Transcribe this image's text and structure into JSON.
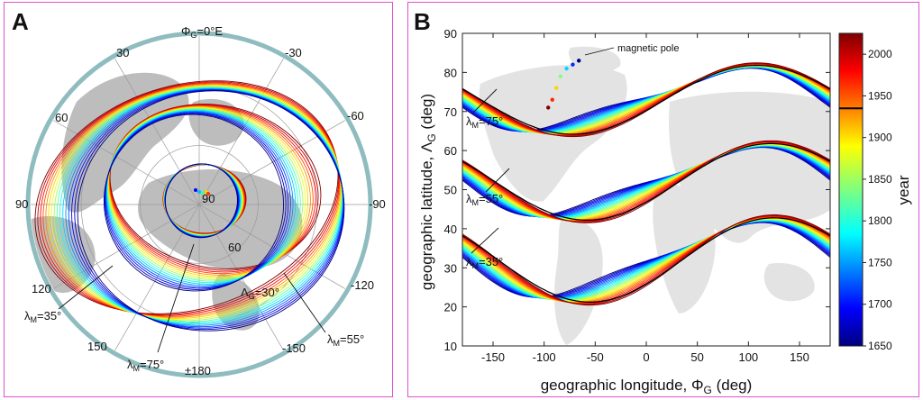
{
  "panels": {
    "a": {
      "letter": "A",
      "top_label": "Φ",
      "top_label_sub": "G",
      "top_label_value": "=0°E",
      "longitude_labels": [
        "30",
        "-30",
        "60",
        "-60",
        "90",
        "-90",
        "120",
        "-120",
        "150",
        "-150",
        "±180"
      ],
      "latitude_labels": [
        "90",
        "60"
      ],
      "lambda_g_label": "Λ",
      "lambda_g_sub": "G",
      "lambda_g_value": "=30°",
      "lambda_m_symbol": "λ",
      "lambda_m_sub": "M",
      "lambda_m_labels": [
        "=35°",
        "=75°",
        "=55°"
      ]
    },
    "b": {
      "letter": "B",
      "annotation": "magnetic pole",
      "curve_label_symbol": "λ",
      "curve_label_sub": "M",
      "curve_labels": [
        "=75°",
        "=55°",
        "=35°"
      ]
    }
  },
  "chart_data": [
    {
      "type": "line",
      "panel": "A",
      "projection": "polar",
      "colors_encode": "year",
      "rings_latitude": [
        90,
        60,
        30
      ],
      "series": [
        {
          "name": "λM=35°"
        },
        {
          "name": "λM=55°"
        },
        {
          "name": "λM=75°"
        }
      ]
    },
    {
      "type": "line",
      "panel": "B",
      "xlabel": "geographic longitude, ΦG (deg)",
      "xlabel_parts": [
        "geographic longitude, Φ",
        "G",
        " (deg)"
      ],
      "ylabel": "geographic latitude, ΛG (deg)",
      "ylabel_parts": [
        "geographic latitude, Λ",
        "G",
        " (deg)"
      ],
      "xlim": [
        -180,
        180
      ],
      "ylim": [
        10,
        90
      ],
      "x_ticks": [
        -150,
        -100,
        -50,
        0,
        50,
        100,
        150
      ],
      "y_ticks": [
        10,
        20,
        30,
        40,
        50,
        60,
        70,
        80,
        90
      ],
      "colorbar": {
        "label": "year",
        "min": 1650,
        "max": 2025,
        "ticks": [
          1650,
          1700,
          1750,
          1800,
          1850,
          1900,
          1950,
          2000
        ],
        "marker_year": 1935
      },
      "series": [
        {
          "name": "λM=75°",
          "center": 73,
          "amp": 9,
          "x_min": -72,
          "x_min_shift": 28,
          "amp_growth": 0
        },
        {
          "name": "λM=55°",
          "center": 52,
          "amp": 10,
          "x_min": -58,
          "x_min_shift": 30,
          "amp_growth": 0
        },
        {
          "name": "λM=35°",
          "center": 32,
          "amp": 11,
          "x_min": -55,
          "x_min_shift": 32,
          "amp_growth": 0
        }
      ],
      "magnetic_pole_path": [
        {
          "lon": -96,
          "lat": 71
        },
        {
          "lon": -92,
          "lat": 73
        },
        {
          "lon": -88,
          "lat": 76
        },
        {
          "lon": -84,
          "lat": 79
        },
        {
          "lon": -78,
          "lat": 81
        },
        {
          "lon": -72,
          "lat": 82
        },
        {
          "lon": -66,
          "lat": 83
        }
      ]
    }
  ]
}
